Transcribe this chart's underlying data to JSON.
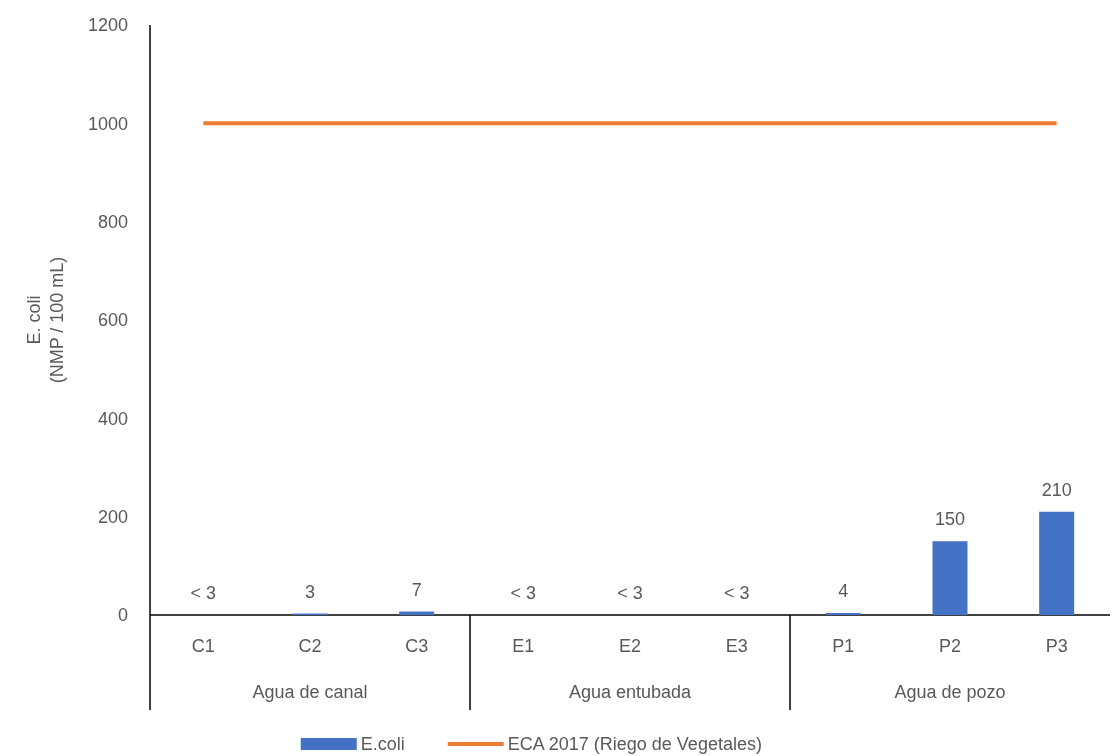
{
  "chart_data": {
    "type": "bar",
    "ylabel": "E. coli\n(NMP / 100 mL)",
    "categories": [
      "C1",
      "C2",
      "C3",
      "E1",
      "E2",
      "E3",
      "P1",
      "P2",
      "P3"
    ],
    "series": [
      {
        "name": "E.coli",
        "color": "#4472c4",
        "values": [
          null,
          3,
          7,
          null,
          null,
          null,
          4,
          150,
          210
        ],
        "value_labels": [
          "< 3",
          "3",
          "7",
          "< 3",
          "< 3",
          "< 3",
          "4",
          "150",
          "210"
        ]
      },
      {
        "name": "ECA 2017 (Riego de Vegetales)",
        "type": "line",
        "color": "#ed7d31",
        "values": [
          1000,
          1000,
          1000,
          1000,
          1000,
          1000,
          1000,
          1000,
          1000
        ]
      }
    ],
    "annotations": [
      "Agua de canal",
      "Agua entubada",
      "Agua de pozo"
    ],
    "ylim": [
      0,
      1200
    ],
    "yticks": [
      0,
      200,
      400,
      600,
      800,
      1000,
      1200
    ],
    "grid": false,
    "legend": "bottom",
    "marker": "none",
    "line_style": "solid"
  }
}
